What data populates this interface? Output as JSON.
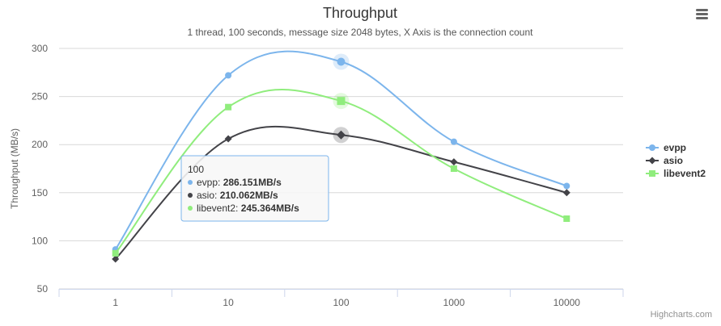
{
  "chart_data": {
    "type": "line",
    "title": "Throughput",
    "subtitle": "1 thread, 100 seconds, message size 2048 bytes, X Axis is the connection count",
    "ylabel": "Throughput (MB/s)",
    "xlabel": "",
    "categories": [
      "1",
      "10",
      "100",
      "1000",
      "10000"
    ],
    "ylim": [
      50,
      300
    ],
    "yticks": [
      50,
      100,
      150,
      200,
      250,
      300
    ],
    "grid": true,
    "legend_position": "right",
    "series": [
      {
        "name": "evpp",
        "color": "#7cb5ec",
        "marker": "circle",
        "values": [
          91,
          272,
          286.151,
          203,
          157
        ]
      },
      {
        "name": "asio",
        "color": "#434348",
        "marker": "diamond",
        "values": [
          81,
          206,
          210.062,
          182,
          150
        ]
      },
      {
        "name": "libevent2",
        "color": "#90ed7d",
        "marker": "square",
        "values": [
          87,
          239,
          245.364,
          175,
          123
        ]
      }
    ],
    "tooltip": {
      "header": "100",
      "rows": [
        {
          "name": "evpp",
          "value": "286.151MB/s"
        },
        {
          "name": "asio",
          "value": "210.062MB/s"
        },
        {
          "name": "libevent2",
          "value": "245.364MB/s"
        }
      ]
    },
    "credits": "Highcharts.com"
  },
  "menu_icon": "hamburger-menu-icon"
}
